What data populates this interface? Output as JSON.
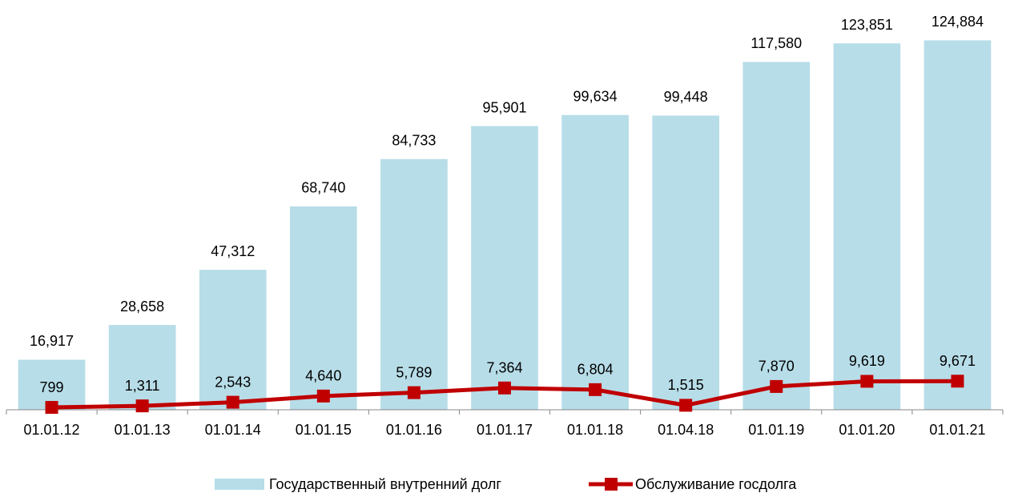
{
  "chart_data": {
    "type": "bar",
    "categories": [
      "01.01.12",
      "01.01.13",
      "01.01.14",
      "01.01.15",
      "01.01.16",
      "01.01.17",
      "01.01.18",
      "01.04.18",
      "01.01.19",
      "01.01.20",
      "01.01.21"
    ],
    "ylim": [
      0,
      135000
    ],
    "legend": "bottom",
    "series": [
      {
        "name": "Государственный внутренний долг",
        "type": "bar",
        "color": "#b7dde8",
        "values": [
          16917,
          28658,
          47312,
          68740,
          84733,
          95901,
          99634,
          99448,
          117580,
          123851,
          124884
        ],
        "value_labels": [
          "16,917",
          "28,658",
          "47,312",
          "68,740",
          "84,733",
          "95,901",
          "99,634",
          "99,448",
          "117,580",
          "123,851",
          "124,884"
        ]
      },
      {
        "name": "Обслуживание госдолга",
        "type": "line",
        "color": "#c00000",
        "values": [
          799,
          1311,
          2543,
          4640,
          5789,
          7364,
          6804,
          1515,
          7870,
          9619,
          9671
        ],
        "value_labels": [
          "799",
          "1,311",
          "2,543",
          "4,640",
          "5,789",
          "7,364",
          "6,804",
          "1,515",
          "7,870",
          "9,619",
          "9,671"
        ]
      }
    ]
  }
}
